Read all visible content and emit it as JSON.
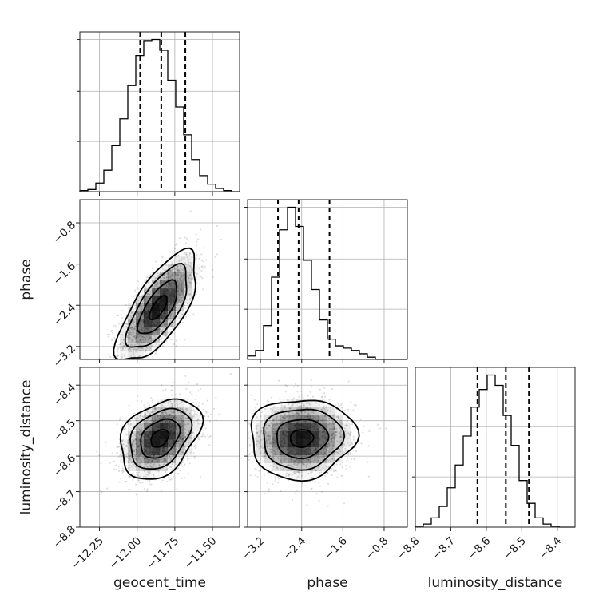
{
  "chart_data": {
    "type": "corner",
    "parameters": [
      {
        "key": "geocent_time",
        "label": "geocent_time",
        "ticks": [
          -12.25,
          -12.0,
          -11.75,
          -11.5
        ],
        "tick_labels": [
          "−12.25",
          "−12.00",
          "−11.75",
          "−11.50"
        ],
        "range": [
          -12.38,
          -11.32
        ]
      },
      {
        "key": "phase",
        "label": "phase",
        "ticks": [
          -3.2,
          -2.4,
          -1.6,
          -0.8
        ],
        "tick_labels": [
          "−3.2",
          "−2.4",
          "−1.6",
          "−0.8"
        ],
        "range": [
          -3.45,
          -0.35
        ]
      },
      {
        "key": "luminosity_distance",
        "label": "luminosity_distance",
        "ticks": [
          -8.8,
          -8.7,
          -8.6,
          -8.5,
          -8.4
        ],
        "tick_labels": [
          "−8.8",
          "−8.7",
          "−8.6",
          "−8.5",
          "−8.4"
        ],
        "range": [
          -8.8,
          -8.35
        ]
      }
    ],
    "histograms": [
      {
        "param": "geocent_time",
        "bin_start": -12.38,
        "bin_width": 0.053,
        "counts": [
          1,
          2,
          8,
          20,
          43,
          68,
          99,
          127,
          141,
          142,
          132,
          104,
          79,
          53,
          30,
          15,
          7,
          3,
          1,
          0
        ],
        "quantiles": [
          -11.98,
          -11.84,
          -11.68
        ]
      },
      {
        "param": "phase",
        "bin_start": -3.45,
        "bin_width": 0.155,
        "counts": [
          3,
          8,
          30,
          73,
          115,
          135,
          118,
          88,
          62,
          35,
          18,
          12,
          10,
          8,
          5,
          2,
          0,
          0,
          0,
          0
        ],
        "quantiles": [
          -2.86,
          -2.46,
          -1.86
        ]
      },
      {
        "param": "luminosity_distance",
        "bin_start": -8.8,
        "bin_width": 0.0225,
        "counts": [
          1,
          3,
          9,
          20,
          38,
          60,
          88,
          116,
          133,
          147,
          137,
          108,
          79,
          45,
          23,
          9,
          3,
          1,
          0,
          0
        ],
        "quantiles": [
          -8.625,
          -8.545,
          -8.48
        ]
      }
    ],
    "pairs": [
      {
        "x": "geocent_time",
        "y": "phase",
        "mean": [
          -11.86,
          -2.45
        ],
        "sd": [
          0.13,
          0.52
        ],
        "rho": 0.7
      },
      {
        "x": "geocent_time",
        "y": "luminosity_distance",
        "mean": [
          -11.85,
          -8.55
        ],
        "sd": [
          0.13,
          0.055
        ],
        "rho": 0.35
      },
      {
        "x": "phase",
        "y": "luminosity_distance",
        "mean": [
          -2.4,
          -8.55
        ],
        "sd": [
          0.5,
          0.055
        ],
        "rho": 0.05
      }
    ],
    "grid": true,
    "samples_shown": "scatter points with density shading and contour levels"
  }
}
